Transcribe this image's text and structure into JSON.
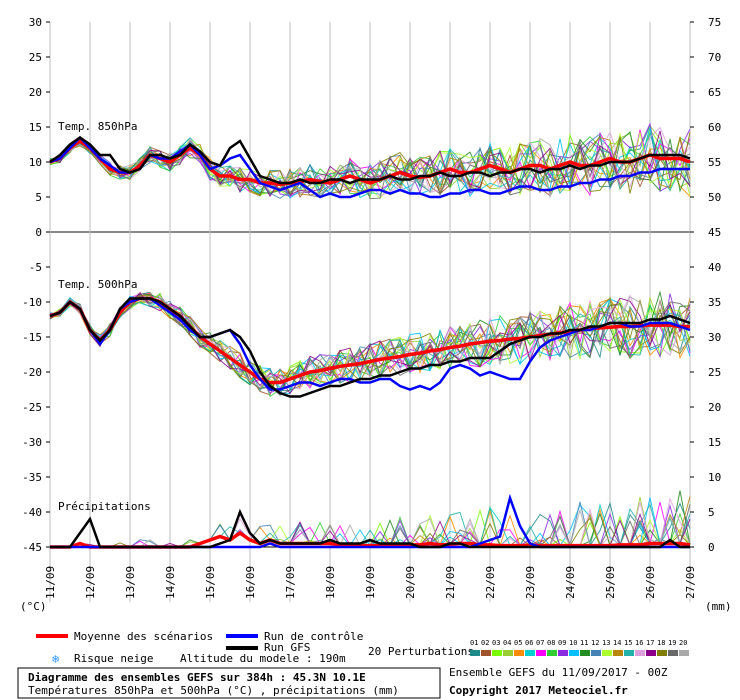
{
  "header": {
    "title_line1": "Diagramme des ensembles GEFS sur 384h : 45.3N 10.1E",
    "title_line2": "Températures 850hPa et 500hPa (°C) , précipitations (mm)",
    "run_info": "Ensemble GEFS du 11/09/2017 - 00Z",
    "copyright": "Copyright 2017 Meteociel.fr",
    "model_altitude": "Altitude du modele : 190m",
    "perturbations_label": "20 Perturbations",
    "left_unit": "(°C)",
    "right_unit": "(mm)"
  },
  "legend": {
    "mean": {
      "label": "Moyenne des scénarios",
      "color": "#ff0000"
    },
    "control": {
      "label": "Run de contrôle",
      "color": "#0000ff"
    },
    "gfs": {
      "label": "Run GFS",
      "color": "#000000"
    },
    "snow": {
      "label": "Risque neige",
      "icon": "snowflake-icon",
      "color": "#3399ff"
    },
    "perturbation_numbers": [
      "01",
      "02",
      "03",
      "04",
      "05",
      "06",
      "07",
      "08",
      "09",
      "10",
      "11",
      "12",
      "13",
      "14",
      "15",
      "16",
      "17",
      "18",
      "19",
      "20"
    ],
    "perturbation_colors": [
      "#1f8a8a",
      "#a0522d",
      "#7cfc00",
      "#9acd32",
      "#ff8c00",
      "#00ced1",
      "#ff00ff",
      "#32cd32",
      "#8a2be2",
      "#00bfff",
      "#228b22",
      "#4682b4",
      "#adff2f",
      "#b8860b",
      "#20b2aa",
      "#dda0dd",
      "#8b008b",
      "#808000",
      "#696969",
      "#a9a9a9"
    ]
  },
  "chart_data": {
    "type": "line",
    "x_ticks": [
      "11/09",
      "12/09",
      "13/09",
      "14/09",
      "15/09",
      "16/09",
      "17/09",
      "18/09",
      "19/09",
      "20/09",
      "21/09",
      "22/09",
      "23/09",
      "24/09",
      "25/09",
      "26/09",
      "27/09"
    ],
    "left_axis_ticks": [
      "30",
      "25",
      "20",
      "15",
      "10",
      "5",
      "0",
      "-5",
      "-10",
      "-15",
      "-20",
      "-25",
      "-30",
      "-35",
      "-40",
      "-45"
    ],
    "right_axis_ticks": [
      "75",
      "70",
      "65",
      "60",
      "55",
      "50",
      "45",
      "40",
      "35",
      "30",
      "25",
      "20",
      "15",
      "10",
      "5",
      "0"
    ],
    "section_labels": {
      "t850": "Temp. 850hPa",
      "t500": "Temp. 500hPa",
      "precip": "Précipitations"
    },
    "x_days": [
      0,
      0.25,
      0.5,
      0.75,
      1,
      1.25,
      1.5,
      1.75,
      2,
      2.25,
      2.5,
      2.75,
      3,
      3.25,
      3.5,
      3.75,
      4,
      4.25,
      4.5,
      4.75,
      5,
      5.25,
      5.5,
      5.75,
      6,
      6.25,
      6.5,
      6.75,
      7,
      7.25,
      7.5,
      7.75,
      8,
      8.25,
      8.5,
      8.75,
      9,
      9.25,
      9.5,
      9.75,
      10,
      10.25,
      10.5,
      10.75,
      11,
      11.25,
      11.5,
      11.75,
      12,
      12.25,
      12.5,
      12.75,
      13,
      13.25,
      13.5,
      13.75,
      14,
      14.25,
      14.5,
      14.75,
      15,
      15.25,
      15.5,
      15.75,
      16
    ],
    "series": [
      {
        "name": "Moyenne des scénarios",
        "section": "t850",
        "color": "#ff0000",
        "values": [
          10,
          10.5,
          12,
          13,
          12,
          10.5,
          9,
          8.5,
          8.5,
          9.5,
          11,
          10.5,
          10,
          11,
          12,
          11,
          9,
          8,
          8,
          7.5,
          7.5,
          7,
          7,
          6.8,
          7,
          7.2,
          7.5,
          7.2,
          7,
          7.5,
          8,
          7.5,
          7,
          7.5,
          8,
          8.5,
          8,
          7.8,
          8,
          8.5,
          9,
          8.5,
          8.5,
          9,
          9.5,
          9,
          8.5,
          9,
          9.5,
          9.5,
          9,
          9.5,
          10,
          9.5,
          9.5,
          10,
          10.5,
          10,
          10,
          10.5,
          11,
          10.5,
          10.5,
          10.5,
          10
        ]
      },
      {
        "name": "Run de contrôle",
        "section": "t850",
        "color": "#0000ff",
        "values": [
          10,
          10.5,
          12,
          13.5,
          12,
          10.5,
          9.5,
          8.5,
          8.5,
          9,
          11,
          10.5,
          10.5,
          11.5,
          12.5,
          11,
          9,
          9.5,
          10.5,
          11,
          9,
          7,
          6.5,
          6,
          6.5,
          7,
          6,
          5,
          5.5,
          5,
          5,
          5.5,
          6,
          6,
          5.5,
          6,
          5.5,
          5.5,
          5,
          5,
          5.5,
          5.5,
          6,
          6,
          5.5,
          5.5,
          6,
          6.5,
          6.5,
          6,
          6,
          6.5,
          6.5,
          7,
          7,
          7.5,
          7.5,
          8,
          8,
          8.5,
          8.5,
          9,
          9,
          9,
          9
        ]
      },
      {
        "name": "Run GFS",
        "section": "t850",
        "color": "#000000",
        "values": [
          10,
          11,
          12.5,
          13.5,
          12.5,
          11,
          11,
          9,
          8.5,
          9,
          11,
          11,
          10.5,
          11,
          12.5,
          11.5,
          10,
          9.5,
          12,
          13,
          10.5,
          8,
          7.5,
          7,
          7,
          7.5,
          7,
          7,
          7.5,
          7.5,
          7,
          7.5,
          7.5,
          7.5,
          8,
          7.5,
          7.5,
          8,
          8,
          8.5,
          8,
          8,
          8.5,
          8.5,
          8,
          8.5,
          8.5,
          9,
          9,
          8.5,
          9,
          9,
          9.5,
          9,
          9.5,
          9.5,
          10,
          10,
          10,
          10.5,
          11,
          11,
          11,
          11,
          10.5
        ]
      },
      {
        "name": "Moyenne des scénarios",
        "section": "t500",
        "color": "#ff0000",
        "values": [
          -12,
          -11.5,
          -10,
          -11,
          -14,
          -15.5,
          -14,
          -11.5,
          -10,
          -9.5,
          -9.5,
          -10,
          -11,
          -12,
          -13.5,
          -15,
          -16,
          -17,
          -18,
          -19,
          -20,
          -21,
          -21.5,
          -21.5,
          -21,
          -20.5,
          -20,
          -19.8,
          -19.5,
          -19.2,
          -19,
          -18.8,
          -18.5,
          -18.2,
          -18,
          -17.8,
          -17.5,
          -17.3,
          -17,
          -16.8,
          -16.5,
          -16.3,
          -16,
          -15.8,
          -15.6,
          -15.5,
          -15.3,
          -15.2,
          -15,
          -14.8,
          -14.6,
          -14.4,
          -14.2,
          -14,
          -13.8,
          -13.7,
          -13.6,
          -13.5,
          -13.5,
          -13.4,
          -13.3,
          -13.3,
          -13.3,
          -13.5,
          -13.5
        ]
      },
      {
        "name": "Run de contrôle",
        "section": "t500",
        "color": "#0000ff",
        "values": [
          -12,
          -11.5,
          -10,
          -11,
          -14,
          -16,
          -14,
          -11,
          -10,
          -9.5,
          -9.5,
          -10.5,
          -11.5,
          -12.5,
          -14,
          -15,
          -15,
          -14.5,
          -14,
          -16,
          -19,
          -21,
          -22.5,
          -22.5,
          -22,
          -21.5,
          -21.5,
          -22,
          -21.5,
          -21,
          -21,
          -21.5,
          -21.5,
          -21,
          -21,
          -22,
          -22.5,
          -22,
          -22.5,
          -21.5,
          -19.5,
          -19,
          -19.5,
          -20.5,
          -20,
          -20.5,
          -21,
          -21,
          -18.5,
          -16.5,
          -15.5,
          -15,
          -14.5,
          -14,
          -14,
          -13.5,
          -13,
          -13,
          -13.5,
          -13.5,
          -13,
          -13,
          -13,
          -13.5,
          -14
        ]
      },
      {
        "name": "Run GFS",
        "section": "t500",
        "color": "#000000",
        "values": [
          -12,
          -11.5,
          -10,
          -11,
          -14,
          -15.5,
          -14,
          -11,
          -9.5,
          -9.5,
          -9.5,
          -10,
          -11,
          -12,
          -13.5,
          -15,
          -15,
          -14.5,
          -14,
          -15,
          -17,
          -20,
          -22,
          -23,
          -23.5,
          -23.5,
          -23,
          -22.5,
          -22,
          -22,
          -21.5,
          -21,
          -21,
          -20.5,
          -20.5,
          -20,
          -19.5,
          -19.5,
          -19,
          -19,
          -18.5,
          -18.5,
          -18,
          -18,
          -18,
          -17,
          -16,
          -15.5,
          -15,
          -15,
          -14.5,
          -14.5,
          -14,
          -14,
          -13.5,
          -13.5,
          -13,
          -13,
          -13,
          -13,
          -12.5,
          -12.5,
          -12,
          -12.5,
          -13
        ]
      },
      {
        "name": "Moyenne des scénarios",
        "section": "precip",
        "color": "#ff0000",
        "values": [
          0,
          0,
          0,
          0.5,
          0,
          0,
          0,
          0,
          0,
          0,
          0,
          0,
          0,
          0,
          0,
          0.5,
          1,
          1.5,
          1,
          2,
          1,
          0.5,
          1,
          0.5,
          0.5,
          0.5,
          0.5,
          0.5,
          0.5,
          0.3,
          0.2,
          0.2,
          0.2,
          0.2,
          0.2,
          0.2,
          0.3,
          0.3,
          0.5,
          0.3,
          0.4,
          0.5,
          0.5,
          0.3,
          0.3,
          0.2,
          0.2,
          0.2,
          0.2,
          0.2,
          0.2,
          0.2,
          0.2,
          0.2,
          0.2,
          0.2,
          0.2,
          0.3,
          0.3,
          0.3,
          0.5,
          0.5,
          0.5,
          0.5,
          0.3
        ]
      },
      {
        "name": "Run de contrôle",
        "section": "precip",
        "color": "#0000ff",
        "values": [
          0,
          0,
          0,
          0,
          0,
          0,
          0,
          0,
          0,
          0,
          0,
          0,
          0,
          0,
          0,
          0,
          0,
          0,
          0,
          0,
          0,
          0,
          0.5,
          0,
          0,
          0,
          0,
          0,
          0,
          0,
          0,
          0,
          0,
          0,
          0,
          0,
          0,
          0,
          0,
          0,
          0,
          0,
          0,
          0.5,
          1,
          1.5,
          7,
          3,
          0.5,
          0,
          0,
          0,
          0,
          0,
          0,
          0,
          0,
          0,
          0,
          0,
          0,
          0,
          0,
          0,
          0
        ]
      },
      {
        "name": "Run GFS",
        "section": "precip",
        "color": "#000000",
        "values": [
          0,
          0,
          0,
          2,
          4,
          0,
          0,
          0,
          0,
          0,
          0,
          0,
          0,
          0,
          0,
          0,
          0,
          0.5,
          1,
          5,
          2,
          0.5,
          1,
          0.5,
          0.5,
          0.5,
          0.5,
          0.5,
          1,
          0.5,
          0.5,
          0.5,
          1,
          0.5,
          0.5,
          0.5,
          0.5,
          0,
          0,
          0,
          0.5,
          0.5,
          0,
          0,
          0,
          0,
          0,
          0,
          0,
          0,
          0,
          0,
          0,
          0,
          0,
          0,
          0,
          0,
          0,
          0,
          0,
          0,
          1,
          0,
          0
        ]
      }
    ],
    "left_scale": {
      "min": -45,
      "max": 30
    },
    "right_scale": {
      "min": 0,
      "max": 75
    },
    "grid": true
  }
}
